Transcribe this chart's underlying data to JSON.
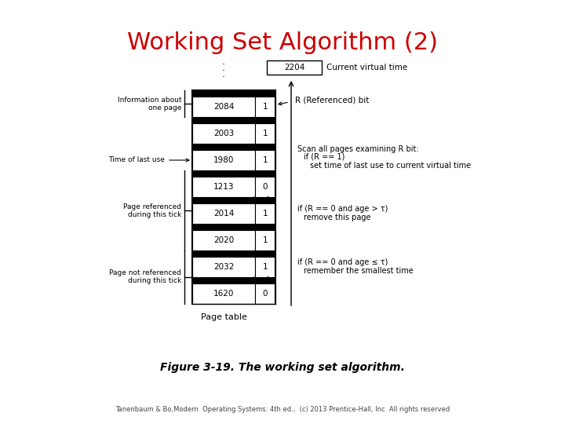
{
  "title": "Working Set Algorithm (2)",
  "title_color": "#cc0000",
  "title_fontsize": 22,
  "figure_caption": "Figure 3-19. The working set algorithm.",
  "footer": "Tanenbaum & Bo,Modern  Operating Systems: 4th ed.,  (c) 2013 Prentice-Hall, Inc  All rights reserved",
  "current_virtual_time": "2204",
  "current_virtual_time_label": "Current virtual time",
  "table_rows": [
    {
      "time": "2084",
      "R": "1",
      "dark_top": true
    },
    {
      "time": "2003",
      "R": "1",
      "dark_top": true
    },
    {
      "time": "1980",
      "R": "1",
      "dark_top": true
    },
    {
      "time": "1213",
      "R": "0",
      "dark_top": false
    },
    {
      "time": "2014",
      "R": "1",
      "dark_top": true
    },
    {
      "time": "2020",
      "R": "1",
      "dark_top": false
    },
    {
      "time": "2032",
      "R": "1",
      "dark_top": true
    },
    {
      "time": "1620",
      "R": "0",
      "dark_top": false
    }
  ],
  "page_table_label": "Page table",
  "background_color": "#ffffff"
}
